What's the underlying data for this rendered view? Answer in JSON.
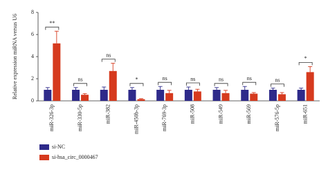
{
  "chart_data": {
    "type": "bar",
    "y_label": "Relative expression miRNA versus U6",
    "categories": [
      "miR-326-3p",
      "miR-330-5p",
      "miR-382",
      "miR-450b-3p",
      "miR-769-3p",
      "miR-508",
      "miR-549",
      "miR-569",
      "miR-576-5p",
      "miR-651"
    ],
    "series": [
      {
        "name": "si-NC",
        "color": "#2e2a8a",
        "values": [
          1.0,
          1.0,
          1.0,
          1.0,
          1.0,
          1.0,
          1.0,
          1.0,
          1.0,
          1.0
        ],
        "errors": [
          0.2,
          0.2,
          0.25,
          0.2,
          0.3,
          0.25,
          0.2,
          0.3,
          0.15,
          0.15
        ]
      },
      {
        "name": "si-hsa_circ_0000467",
        "color": "#d63a1e",
        "values": [
          5.2,
          0.55,
          2.7,
          0.15,
          0.7,
          0.85,
          0.7,
          0.65,
          0.6,
          2.6
        ],
        "errors": [
          1.1,
          0.1,
          0.7,
          0.05,
          0.25,
          0.2,
          0.25,
          0.1,
          0.15,
          0.5
        ]
      }
    ],
    "significance": [
      "**",
      "ns",
      "ns",
      "*",
      "ns",
      "ns",
      "ns",
      "ns",
      "ns",
      "*"
    ],
    "ylim": [
      0,
      8
    ],
    "yticks": [
      0,
      2,
      4,
      6,
      8
    ],
    "legend": "bottom-left"
  }
}
